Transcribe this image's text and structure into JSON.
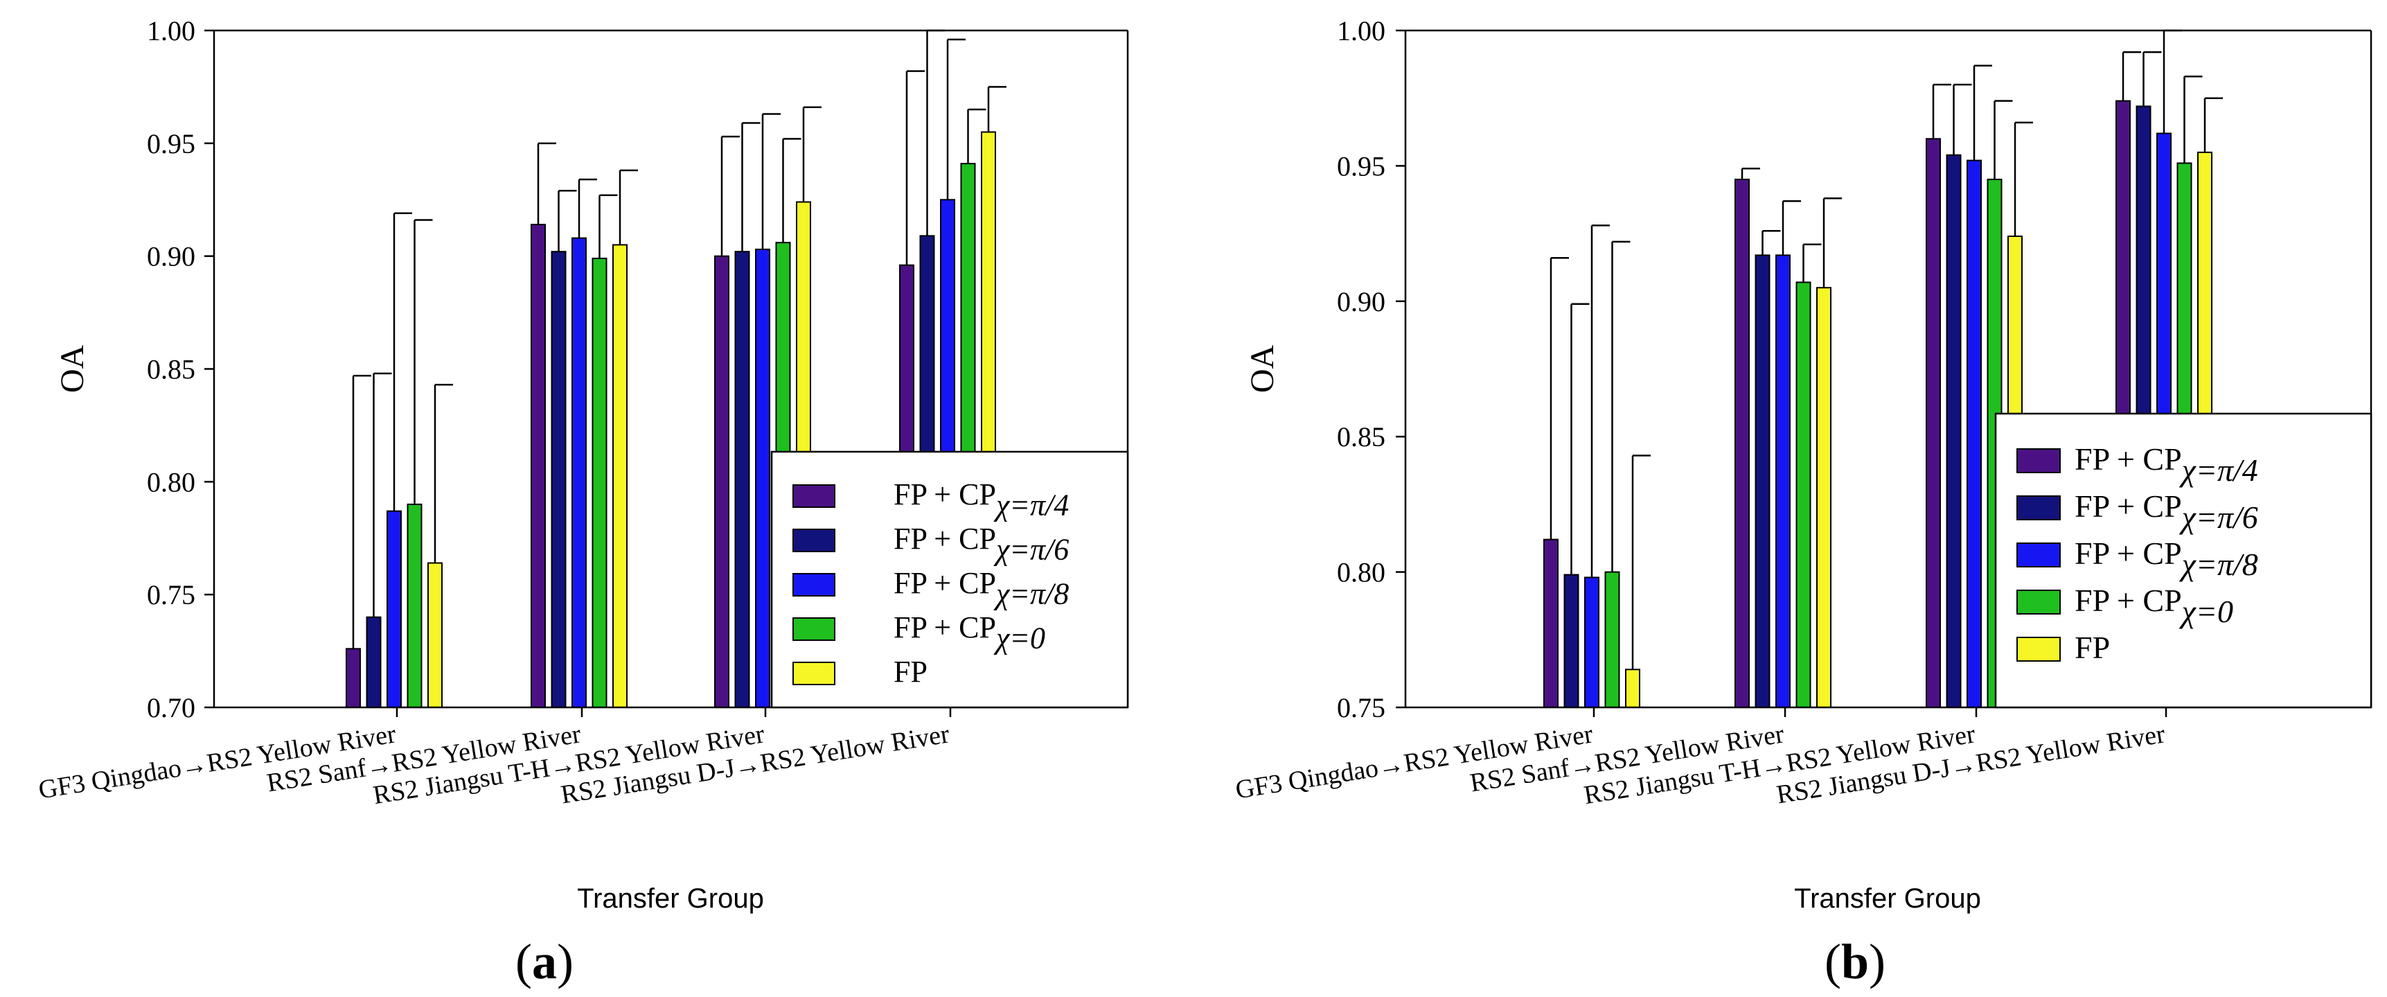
{
  "colors": {
    "FP + CP χ=π/4": "#4b1184",
    "FP + CP χ=π/6": "#12127c",
    "FP + CP χ=π/8": "#1616f2",
    "FP + CP χ=0": "#1fbf1f",
    "FP": "#f6f626"
  },
  "chart_data": [
    {
      "panel_label": "(a)",
      "type": "bar",
      "xlabel": "Transfer Group",
      "ylabel": "OA",
      "ylim": [
        0.7,
        1.0
      ],
      "yticks": [
        "0.70",
        "0.75",
        "0.80",
        "0.85",
        "0.90",
        "0.95",
        "1.00"
      ],
      "categories": [
        "GF3 Qingdao→RS2 Yellow River",
        "RS2 Sanf→RS2 Yellow River",
        "RS2 Jiangsu T-H→RS2 Yellow River",
        "RS2 Jiangsu D-J→RS2 Yellow River"
      ],
      "legend_position": "bottom-right",
      "series": [
        {
          "name": "FP + CP",
          "sub": "χ=π/4",
          "values": [
            0.726,
            0.914,
            0.9,
            0.896
          ],
          "errors": [
            0.121,
            0.036,
            0.053,
            0.086
          ]
        },
        {
          "name": "FP + CP",
          "sub": "χ=π/6",
          "values": [
            0.74,
            0.902,
            0.902,
            0.909
          ],
          "errors": [
            0.108,
            0.027,
            0.057,
            0.101
          ]
        },
        {
          "name": "FP + CP",
          "sub": "χ=π/8",
          "values": [
            0.787,
            0.908,
            0.903,
            0.925
          ],
          "errors": [
            0.132,
            0.026,
            0.06,
            0.071
          ]
        },
        {
          "name": "FP + CP",
          "sub": "χ=0",
          "values": [
            0.79,
            0.899,
            0.906,
            0.941
          ],
          "errors": [
            0.126,
            0.028,
            0.046,
            0.024
          ]
        },
        {
          "name": "FP",
          "sub": "",
          "values": [
            0.764,
            0.905,
            0.924,
            0.955
          ],
          "errors": [
            0.079,
            0.033,
            0.042,
            0.02
          ]
        }
      ]
    },
    {
      "panel_label": "(b)",
      "type": "bar",
      "xlabel": "Transfer Group",
      "ylabel": "OA",
      "ylim": [
        0.75,
        1.0
      ],
      "yticks": [
        "0.75",
        "0.80",
        "0.85",
        "0.90",
        "0.95",
        "1.00"
      ],
      "categories": [
        "GF3 Qingdao→RS2 Yellow River",
        "RS2 Sanf→RS2 Yellow River",
        "RS2 Jiangsu T-H→RS2 Yellow River",
        "RS2 Jiangsu D-J→RS2 Yellow River"
      ],
      "legend_position": "bottom-right",
      "series": [
        {
          "name": "FP + CP",
          "sub": "χ=π/4",
          "values": [
            0.812,
            0.945,
            0.96,
            0.974
          ],
          "errors": [
            0.104,
            0.004,
            0.02,
            0.018
          ]
        },
        {
          "name": "FP + CP",
          "sub": "χ=π/6",
          "values": [
            0.799,
            0.917,
            0.954,
            0.972
          ],
          "errors": [
            0.1,
            0.009,
            0.026,
            0.02
          ]
        },
        {
          "name": "FP + CP",
          "sub": "χ=π/8",
          "values": [
            0.798,
            0.917,
            0.952,
            0.962
          ],
          "errors": [
            0.13,
            0.02,
            0.035,
            0.04
          ]
        },
        {
          "name": "FP + CP",
          "sub": "χ=0",
          "values": [
            0.8,
            0.907,
            0.945,
            0.951
          ],
          "errors": [
            0.122,
            0.014,
            0.029,
            0.032
          ]
        },
        {
          "name": "FP",
          "sub": "",
          "values": [
            0.764,
            0.905,
            0.924,
            0.955
          ],
          "errors": [
            0.079,
            0.033,
            0.042,
            0.02
          ]
        }
      ]
    }
  ]
}
